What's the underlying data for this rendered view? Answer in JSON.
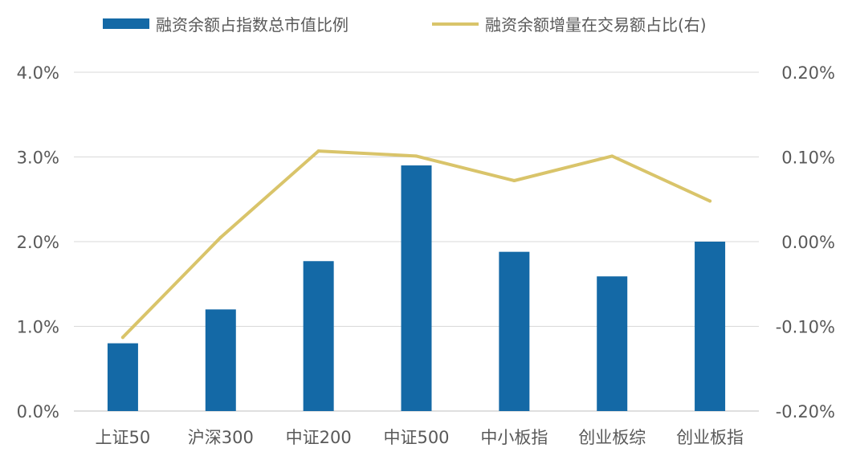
{
  "colors": {
    "bar": "#1469a6",
    "line": "#d9c46a",
    "grid": "#d9d9d9",
    "text": "#595959"
  },
  "chart_data": {
    "type": "bar",
    "categories": [
      "上证50",
      "沪深300",
      "中证200",
      "中证500",
      "中小板指",
      "创业板综",
      "创业板指"
    ],
    "series": [
      {
        "name": "融资余额占指数总市值比例",
        "type": "bar",
        "axis": "left",
        "values": [
          0.8,
          1.2,
          1.77,
          2.9,
          1.88,
          1.59,
          2.0
        ]
      },
      {
        "name": "融资余额增量在交易额占比(右)",
        "type": "line",
        "axis": "right",
        "values": [
          -0.113,
          0.005,
          0.107,
          0.101,
          0.072,
          0.101,
          0.048
        ]
      }
    ],
    "left_axis": {
      "ylim": [
        0,
        4
      ],
      "ticks": [
        "0.0%",
        "1.0%",
        "2.0%",
        "3.0%",
        "4.0%"
      ]
    },
    "right_axis": {
      "ylim": [
        -0.2,
        0.2
      ],
      "ticks": [
        "-0.20%",
        "-0.10%",
        "0.00%",
        "0.10%",
        "0.20%"
      ]
    },
    "grid": true,
    "legend_position": "top"
  }
}
